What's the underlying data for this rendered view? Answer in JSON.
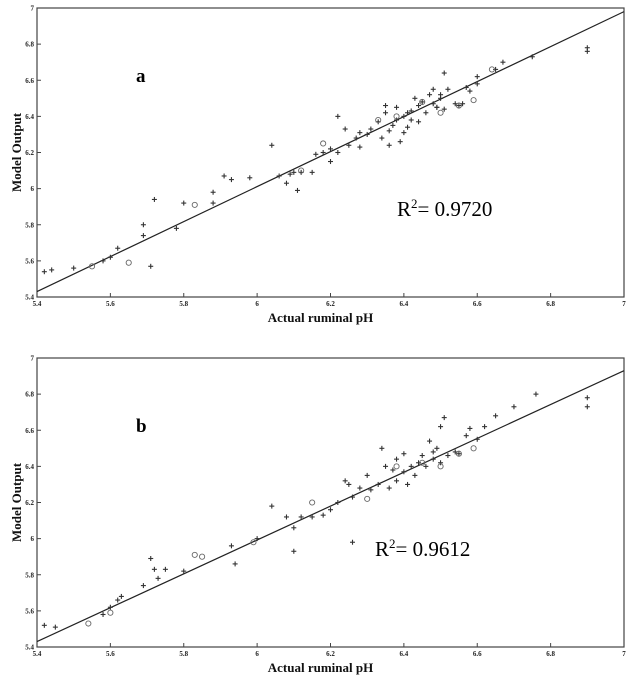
{
  "chart_data": [
    {
      "type": "scatter",
      "panel_label": "a",
      "xlabel": "Actual ruminal pH",
      "ylabel": "Model Output",
      "xlim": [
        5.4,
        7.0
      ],
      "ylim": [
        5.4,
        7.0
      ],
      "x_ticks": [
        "5.4",
        "5.6",
        "5.8",
        "6",
        "6.2",
        "6.4",
        "6.6",
        "6.8",
        "7"
      ],
      "y_ticks": [
        "5.4",
        "5.6",
        "5.8",
        "6",
        "6.2",
        "6.4",
        "6.6",
        "6.8",
        "7"
      ],
      "r2_prefix": "R",
      "r2_sup": "2",
      "r2_value": "= 0.9720",
      "fit_line": [
        [
          5.4,
          5.43
        ],
        [
          7.0,
          6.98
        ]
      ],
      "series": [
        {
          "marker": "plus",
          "points": [
            [
              5.42,
              5.54
            ],
            [
              5.44,
              5.55
            ],
            [
              5.5,
              5.56
            ],
            [
              5.58,
              5.6
            ],
            [
              5.6,
              5.62
            ],
            [
              5.62,
              5.67
            ],
            [
              5.69,
              5.8
            ],
            [
              5.69,
              5.74
            ],
            [
              5.72,
              5.94
            ],
            [
              5.71,
              5.57
            ],
            [
              5.78,
              5.78
            ],
            [
              5.8,
              5.92
            ],
            [
              5.88,
              5.92
            ],
            [
              5.88,
              5.98
            ],
            [
              5.91,
              6.07
            ],
            [
              5.93,
              6.05
            ],
            [
              5.98,
              6.06
            ],
            [
              6.04,
              6.24
            ],
            [
              6.06,
              6.07
            ],
            [
              6.08,
              6.03
            ],
            [
              6.09,
              6.08
            ],
            [
              6.1,
              6.09
            ],
            [
              6.11,
              5.99
            ],
            [
              6.12,
              6.09
            ],
            [
              6.15,
              6.09
            ],
            [
              6.16,
              6.19
            ],
            [
              6.18,
              6.2
            ],
            [
              6.2,
              6.22
            ],
            [
              6.2,
              6.15
            ],
            [
              6.22,
              6.2
            ],
            [
              6.22,
              6.4
            ],
            [
              6.24,
              6.33
            ],
            [
              6.25,
              6.24
            ],
            [
              6.27,
              6.28
            ],
            [
              6.28,
              6.31
            ],
            [
              6.28,
              6.23
            ],
            [
              6.3,
              6.3
            ],
            [
              6.31,
              6.33
            ],
            [
              6.33,
              6.37
            ],
            [
              6.34,
              6.28
            ],
            [
              6.35,
              6.46
            ],
            [
              6.35,
              6.42
            ],
            [
              6.36,
              6.32
            ],
            [
              6.36,
              6.24
            ],
            [
              6.37,
              6.35
            ],
            [
              6.38,
              6.38
            ],
            [
              6.38,
              6.45
            ],
            [
              6.39,
              6.26
            ],
            [
              6.4,
              6.31
            ],
            [
              6.4,
              6.4
            ],
            [
              6.41,
              6.34
            ],
            [
              6.41,
              6.42
            ],
            [
              6.42,
              6.38
            ],
            [
              6.42,
              6.43
            ],
            [
              6.43,
              6.5
            ],
            [
              6.44,
              6.37
            ],
            [
              6.44,
              6.46
            ],
            [
              6.45,
              6.48
            ],
            [
              6.46,
              6.42
            ],
            [
              6.47,
              6.52
            ],
            [
              6.48,
              6.55
            ],
            [
              6.48,
              6.47
            ],
            [
              6.49,
              6.45
            ],
            [
              6.49,
              6.45
            ],
            [
              6.5,
              6.5
            ],
            [
              6.5,
              6.52
            ],
            [
              6.51,
              6.44
            ],
            [
              6.51,
              6.64
            ],
            [
              6.52,
              6.55
            ],
            [
              6.54,
              6.47
            ],
            [
              6.55,
              6.46
            ],
            [
              6.56,
              6.47
            ],
            [
              6.57,
              6.56
            ],
            [
              6.58,
              6.54
            ],
            [
              6.6,
              6.58
            ],
            [
              6.6,
              6.62
            ],
            [
              6.65,
              6.66
            ],
            [
              6.67,
              6.7
            ],
            [
              6.75,
              6.73
            ],
            [
              6.9,
              6.76
            ],
            [
              6.9,
              6.78
            ]
          ]
        },
        {
          "marker": "circle",
          "points": [
            [
              5.55,
              5.57
            ],
            [
              5.65,
              5.59
            ],
            [
              5.83,
              5.91
            ],
            [
              6.12,
              6.1
            ],
            [
              6.18,
              6.25
            ],
            [
              6.33,
              6.38
            ],
            [
              6.38,
              6.4
            ],
            [
              6.45,
              6.48
            ],
            [
              6.5,
              6.42
            ],
            [
              6.55,
              6.46
            ],
            [
              6.59,
              6.49
            ],
            [
              6.64,
              6.66
            ]
          ]
        }
      ]
    },
    {
      "type": "scatter",
      "panel_label": "b",
      "xlabel": "Actual ruminal pH",
      "ylabel": "Model Output",
      "xlim": [
        5.4,
        7.0
      ],
      "ylim": [
        5.4,
        7.0
      ],
      "x_ticks": [
        "5.4",
        "5.6",
        "5.8",
        "6",
        "6.2",
        "6.4",
        "6.6",
        "6.8",
        "7"
      ],
      "y_ticks": [
        "5.4",
        "5.6",
        "5.8",
        "6",
        "6.2",
        "6.4",
        "6.6",
        "6.8",
        "7"
      ],
      "r2_prefix": "R",
      "r2_sup": "2",
      "r2_value": "= 0.9612",
      "fit_line": [
        [
          5.4,
          5.43
        ],
        [
          7.0,
          6.93
        ]
      ],
      "series": [
        {
          "marker": "plus",
          "points": [
            [
              5.42,
              5.52
            ],
            [
              5.45,
              5.51
            ],
            [
              5.58,
              5.58
            ],
            [
              5.6,
              5.62
            ],
            [
              5.62,
              5.66
            ],
            [
              5.63,
              5.68
            ],
            [
              5.69,
              5.74
            ],
            [
              5.71,
              5.89
            ],
            [
              5.72,
              5.83
            ],
            [
              5.73,
              5.78
            ],
            [
              5.75,
              5.83
            ],
            [
              5.8,
              5.82
            ],
            [
              5.93,
              5.96
            ],
            [
              5.94,
              5.86
            ],
            [
              6.0,
              6.0
            ],
            [
              6.04,
              6.18
            ],
            [
              6.08,
              6.12
            ],
            [
              6.1,
              6.06
            ],
            [
              6.1,
              5.93
            ],
            [
              6.12,
              6.12
            ],
            [
              6.15,
              6.12
            ],
            [
              6.18,
              6.13
            ],
            [
              6.2,
              6.16
            ],
            [
              6.22,
              6.2
            ],
            [
              6.24,
              6.32
            ],
            [
              6.25,
              6.3
            ],
            [
              6.26,
              6.23
            ],
            [
              6.26,
              5.98
            ],
            [
              6.28,
              6.28
            ],
            [
              6.3,
              6.35
            ],
            [
              6.31,
              6.27
            ],
            [
              6.33,
              6.3
            ],
            [
              6.34,
              6.5
            ],
            [
              6.35,
              6.4
            ],
            [
              6.36,
              6.28
            ],
            [
              6.37,
              6.38
            ],
            [
              6.38,
              6.44
            ],
            [
              6.38,
              6.32
            ],
            [
              6.4,
              6.47
            ],
            [
              6.4,
              6.37
            ],
            [
              6.41,
              6.3
            ],
            [
              6.42,
              6.4
            ],
            [
              6.43,
              6.35
            ],
            [
              6.44,
              6.42
            ],
            [
              6.45,
              6.46
            ],
            [
              6.46,
              6.4
            ],
            [
              6.47,
              6.54
            ],
            [
              6.48,
              6.44
            ],
            [
              6.48,
              6.48
            ],
            [
              6.49,
              6.5
            ],
            [
              6.5,
              6.42
            ],
            [
              6.5,
              6.62
            ],
            [
              6.51,
              6.67
            ],
            [
              6.52,
              6.46
            ],
            [
              6.54,
              6.48
            ],
            [
              6.55,
              6.47
            ],
            [
              6.57,
              6.57
            ],
            [
              6.58,
              6.61
            ],
            [
              6.6,
              6.55
            ],
            [
              6.62,
              6.62
            ],
            [
              6.65,
              6.68
            ],
            [
              6.7,
              6.73
            ],
            [
              6.76,
              6.8
            ],
            [
              6.9,
              6.73
            ],
            [
              6.9,
              6.78
            ]
          ]
        },
        {
          "marker": "circle",
          "points": [
            [
              5.54,
              5.53
            ],
            [
              5.6,
              5.59
            ],
            [
              5.83,
              5.91
            ],
            [
              5.85,
              5.9
            ],
            [
              5.99,
              5.98
            ],
            [
              6.15,
              6.2
            ],
            [
              6.3,
              6.22
            ],
            [
              6.38,
              6.4
            ],
            [
              6.45,
              6.42
            ],
            [
              6.5,
              6.4
            ],
            [
              6.55,
              6.47
            ],
            [
              6.59,
              6.5
            ]
          ]
        }
      ]
    }
  ]
}
